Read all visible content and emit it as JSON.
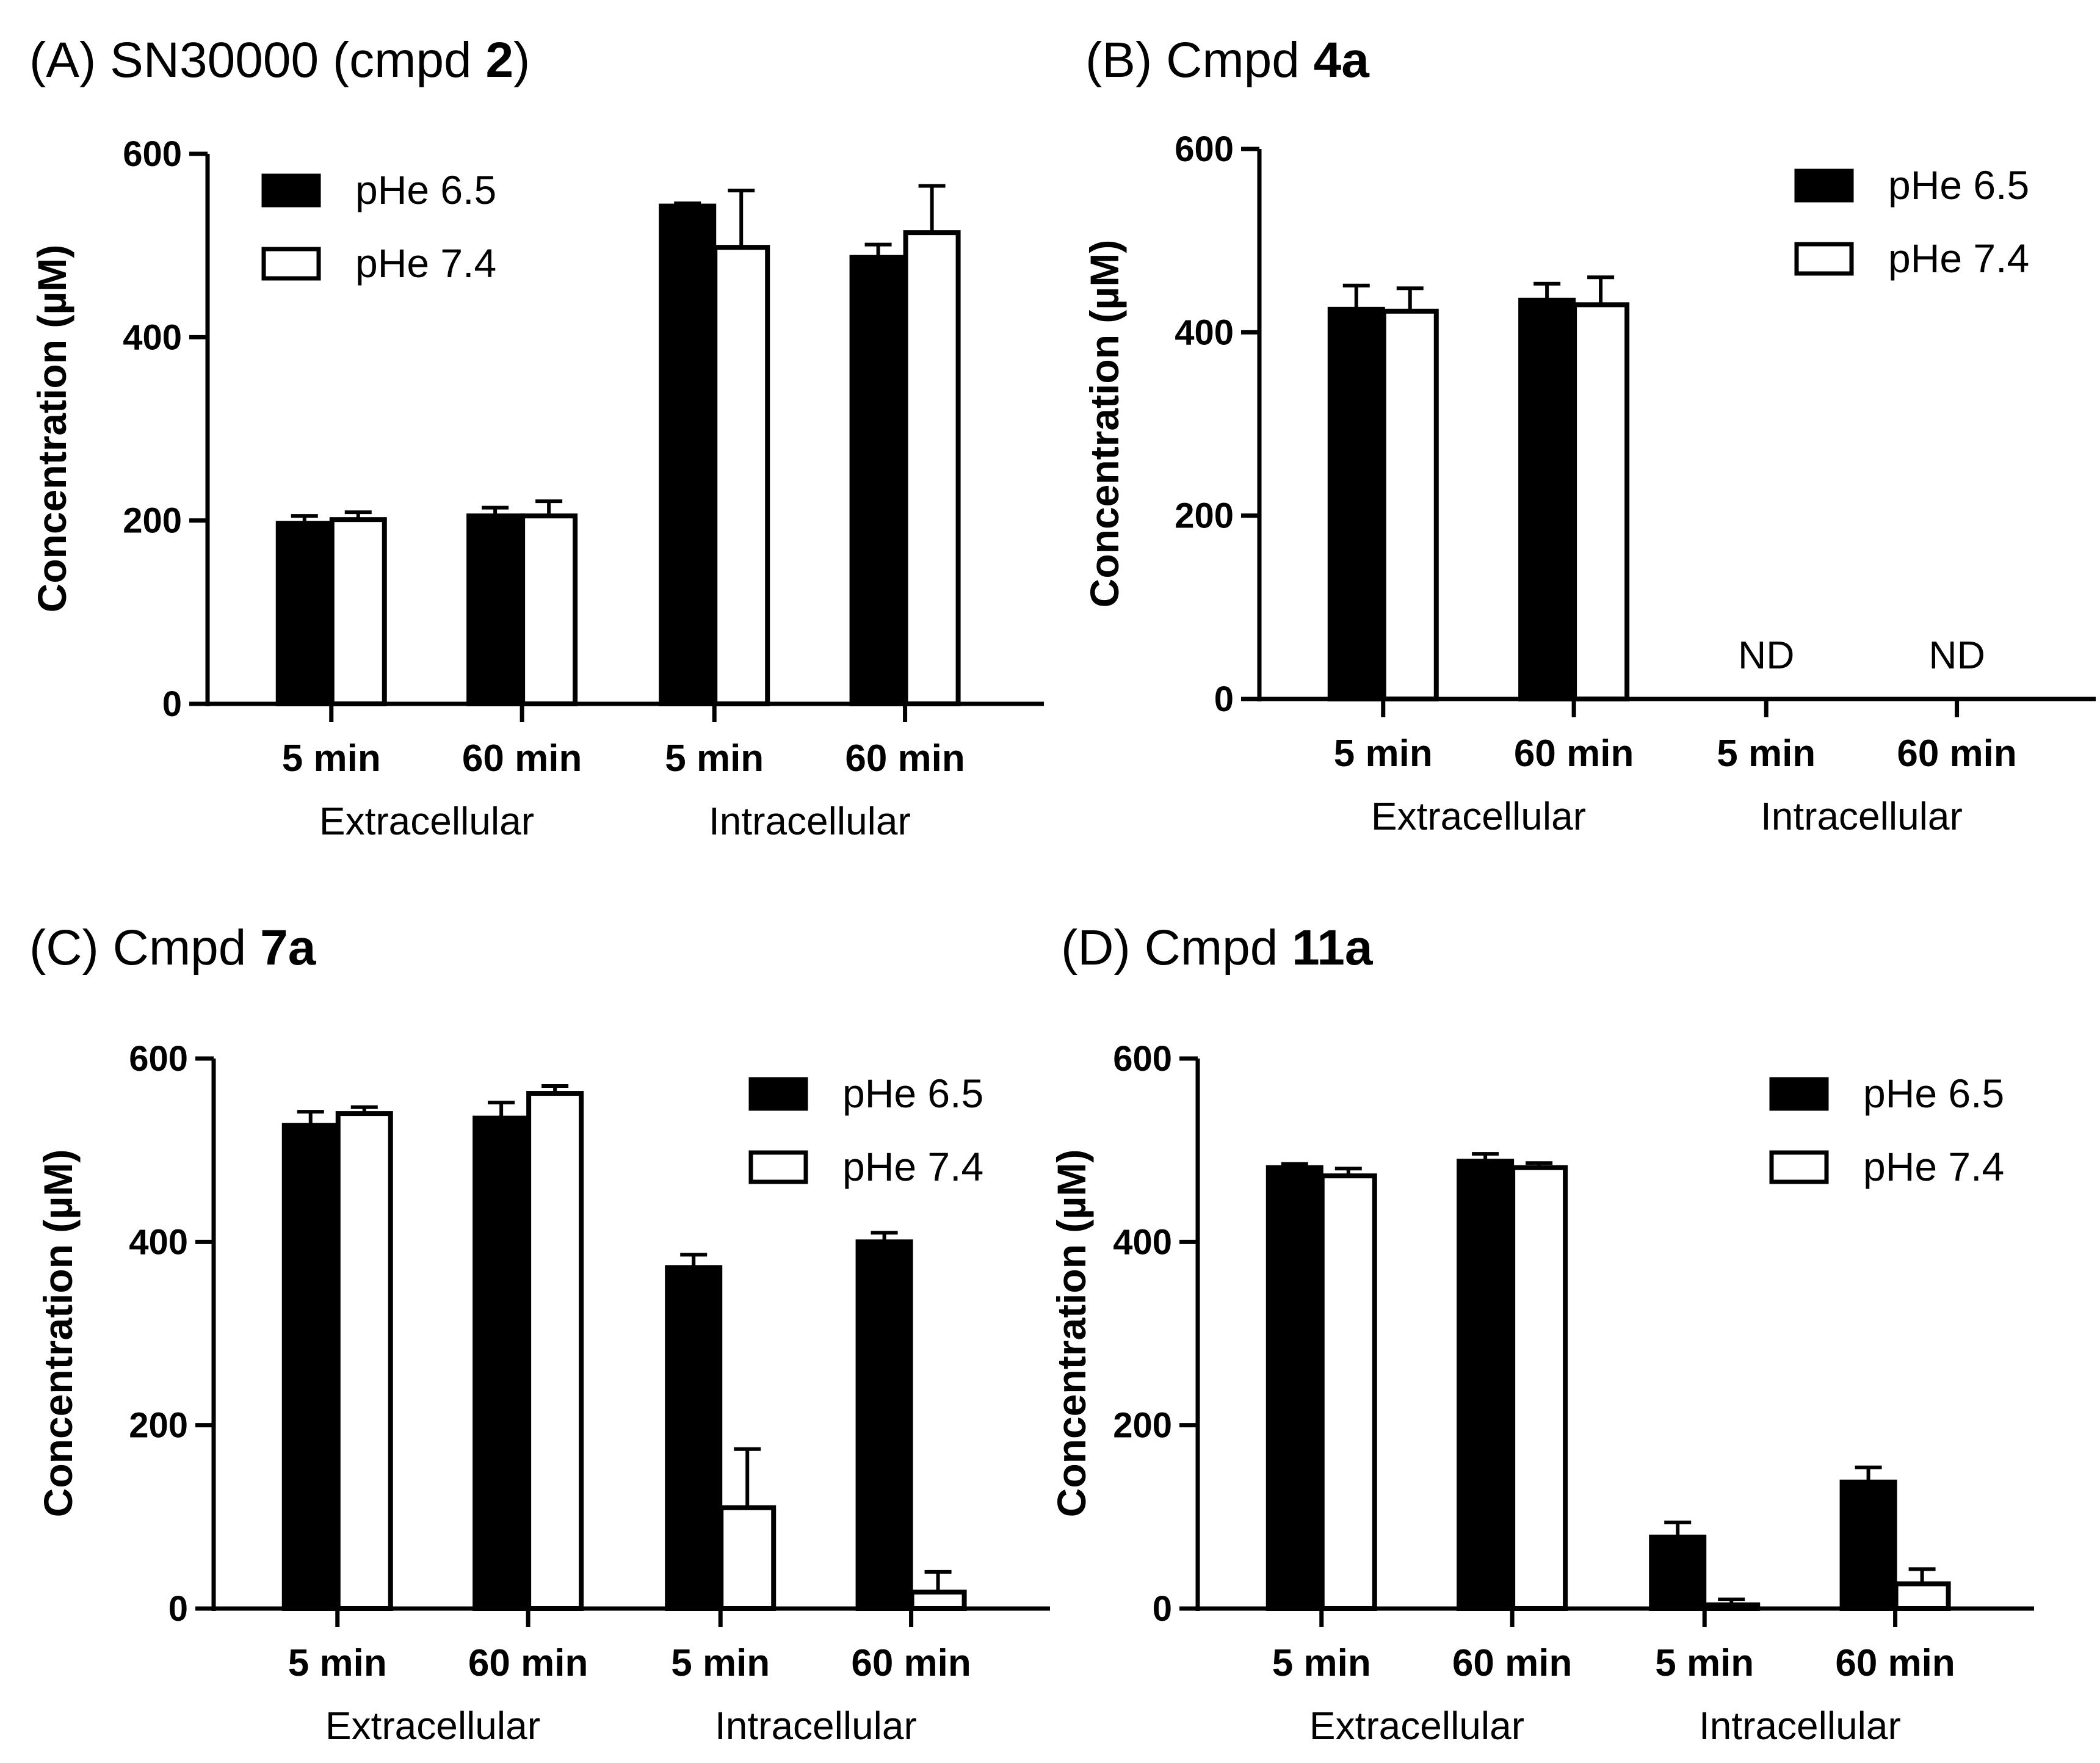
{
  "panels": [
    {
      "label": "(A)",
      "title_text": "SN30000 (cmpd ",
      "title_bold": "2",
      "title_suffix": ")",
      "chart_data": {
        "type": "bar",
        "ylabel": "Concentration (µM)",
        "ylim": [
          0,
          600
        ],
        "yticks": [
          0,
          200,
          400,
          600
        ],
        "categories": [
          "5 min",
          "60 min",
          "5 min",
          "60 min"
        ],
        "groups": [
          "Extracellular",
          "Intracellular"
        ],
        "legend_position": "top-left",
        "series": [
          {
            "name": "pHe 6.5",
            "fill": "#000000",
            "values": [
              197,
              205,
              543,
              487
            ],
            "errors": [
              8,
              9,
              3,
              14
            ]
          },
          {
            "name": "pHe 7.4",
            "fill": "#ffffff",
            "values": [
              201,
              205,
              498,
              514
            ],
            "errors": [
              8,
              16,
              62,
              51
            ]
          }
        ],
        "annotations": []
      }
    },
    {
      "label": "(B)",
      "title_text": "Cmpd ",
      "title_bold": "4a",
      "title_suffix": "",
      "chart_data": {
        "type": "bar",
        "ylabel": "Concentration (µM)",
        "ylim": [
          0,
          600
        ],
        "yticks": [
          0,
          200,
          400,
          600
        ],
        "categories": [
          "5 min",
          "60 min",
          "5 min",
          "60 min"
        ],
        "groups": [
          "Extracellular",
          "Intracellular"
        ],
        "legend_position": "top-right",
        "series": [
          {
            "name": "pHe 6.5",
            "fill": "#000000",
            "values": [
              425,
              435,
              null,
              null
            ],
            "errors": [
              26,
              18,
              null,
              null
            ]
          },
          {
            "name": "pHe 7.4",
            "fill": "#ffffff",
            "values": [
              423,
              430,
              null,
              null
            ],
            "errors": [
              25,
              30,
              null,
              null
            ]
          }
        ],
        "annotations": [
          {
            "category_index": 2,
            "text": "ND"
          },
          {
            "category_index": 3,
            "text": "ND"
          }
        ]
      }
    },
    {
      "label": "(C)",
      "title_text": "Cmpd ",
      "title_bold": "7a",
      "title_suffix": "",
      "chart_data": {
        "type": "bar",
        "ylabel": "Concentration (µM)",
        "ylim": [
          0,
          600
        ],
        "yticks": [
          0,
          200,
          400,
          600
        ],
        "categories": [
          "5 min",
          "60 min",
          "5 min",
          "60 min"
        ],
        "groups": [
          "Extracellular",
          "Intracellular"
        ],
        "legend_position": "top-right",
        "series": [
          {
            "name": "pHe 6.5",
            "fill": "#000000",
            "values": [
              527,
              535,
              372,
              400
            ],
            "errors": [
              15,
              17,
              14,
              10
            ]
          },
          {
            "name": "pHe 7.4",
            "fill": "#ffffff",
            "values": [
              540,
              562,
              110,
              18
            ],
            "errors": [
              7,
              8,
              64,
              22
            ]
          }
        ],
        "annotations": []
      }
    },
    {
      "label": "(D)",
      "title_text": "Cmpd ",
      "title_bold": "11a",
      "title_suffix": "",
      "chart_data": {
        "type": "bar",
        "ylabel": "Concentration (µM)",
        "ylim": [
          0,
          600
        ],
        "yticks": [
          0,
          200,
          400,
          600
        ],
        "categories": [
          "5 min",
          "60 min",
          "5 min",
          "60 min"
        ],
        "groups": [
          "Extracellular",
          "Intracellular"
        ],
        "legend_position": "top-right",
        "series": [
          {
            "name": "pHe 6.5",
            "fill": "#000000",
            "values": [
              481,
              488,
              78,
              138
            ],
            "errors": [
              4,
              8,
              16,
              16
            ]
          },
          {
            "name": "pHe 7.4",
            "fill": "#ffffff",
            "values": [
              472,
              481,
              4,
              27
            ],
            "errors": [
              8,
              5,
              6,
              16
            ]
          }
        ],
        "annotations": []
      }
    }
  ]
}
